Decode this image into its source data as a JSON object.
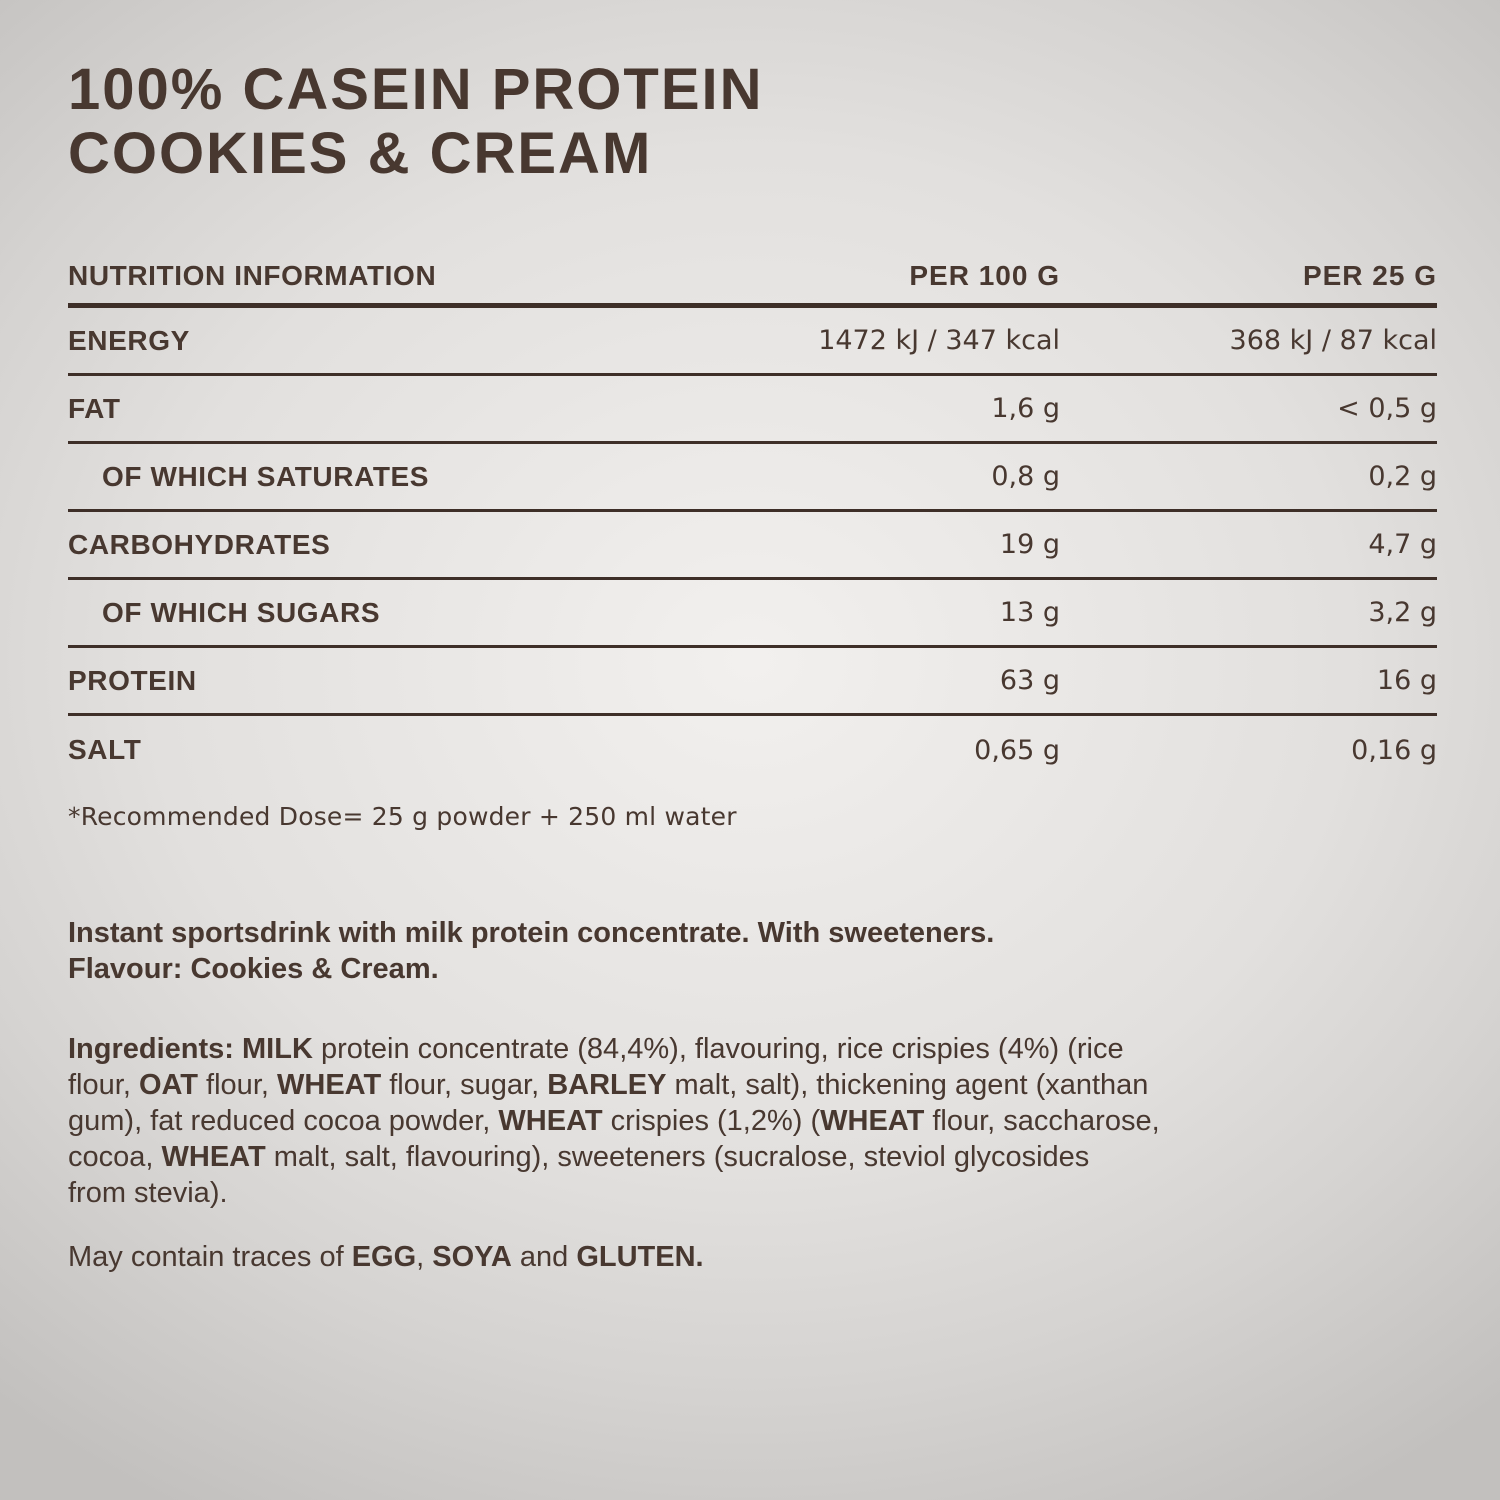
{
  "colors": {
    "text_brown": "#483830",
    "rule_brown": "#3e2f28",
    "background_center": "#f2f0ee",
    "background_edge": "#c2c0be"
  },
  "title": {
    "line1": "100% CASEIN PROTEIN",
    "line2": "COOKIES & CREAM"
  },
  "table": {
    "headers": [
      "NUTRITION INFORMATION",
      "PER 100 G",
      "PER 25 G"
    ],
    "rows": [
      {
        "label": "ENERGY",
        "per100": "1472 kJ / 347 kcal",
        "per25": "368 kJ / 87 kcal",
        "indent": false
      },
      {
        "label": "FAT",
        "per100": "1,6 g",
        "per25": "< 0,5 g",
        "indent": false
      },
      {
        "label": "OF WHICH SATURATES",
        "per100": "0,8 g",
        "per25": "0,2 g",
        "indent": true
      },
      {
        "label": "CARBOHYDRATES",
        "per100": "19 g",
        "per25": "4,7 g",
        "indent": false
      },
      {
        "label": "OF WHICH SUGARS",
        "per100": "13 g",
        "per25": "3,2 g",
        "indent": true
      },
      {
        "label": "PROTEIN",
        "per100": "63 g",
        "per25": "16 g",
        "indent": false
      },
      {
        "label": "SALT",
        "per100": "0,65 g",
        "per25": "0,16 g",
        "indent": false
      }
    ],
    "footnote": "*Recommended Dose= 25 g powder + 250 ml water"
  },
  "description": {
    "lines": [
      [
        {
          "t": "Instant sportsdrink with milk protein concentrate. With sweeteners.",
          "b": true
        }
      ],
      [
        {
          "t": "Flavour: Cookies & Cream.",
          "b": true
        }
      ]
    ]
  },
  "ingredients": {
    "lines": [
      [
        {
          "t": "Ingredients: ",
          "b": true
        },
        {
          "t": "MILK",
          "b": true
        },
        {
          "t": " protein concentrate (84,4%), flavouring, rice crispies (4%) (rice",
          "b": false
        }
      ],
      [
        {
          "t": "flour, ",
          "b": false
        },
        {
          "t": "OAT",
          "b": true
        },
        {
          "t": " flour, ",
          "b": false
        },
        {
          "t": "WHEAT",
          "b": true
        },
        {
          "t": " flour, sugar, ",
          "b": false
        },
        {
          "t": "BARLEY",
          "b": true
        },
        {
          "t": " malt, salt), thickening agent (xanthan",
          "b": false
        }
      ],
      [
        {
          "t": "gum), fat reduced cocoa powder, ",
          "b": false
        },
        {
          "t": "WHEAT",
          "b": true
        },
        {
          "t": " crispies (1,2%) (",
          "b": false
        },
        {
          "t": "WHEAT",
          "b": true
        },
        {
          "t": " flour, saccharose,",
          "b": false
        }
      ],
      [
        {
          "t": "cocoa, ",
          "b": false
        },
        {
          "t": "WHEAT",
          "b": true
        },
        {
          "t": " malt, salt, flavouring), sweeteners (sucralose, steviol glycosides",
          "b": false
        }
      ],
      [
        {
          "t": "from stevia).",
          "b": false
        }
      ]
    ]
  },
  "traces": {
    "lines": [
      [
        {
          "t": "May contain traces of ",
          "b": false
        },
        {
          "t": "EGG",
          "b": true
        },
        {
          "t": ", ",
          "b": false
        },
        {
          "t": "SOYA",
          "b": true
        },
        {
          "t": " and ",
          "b": false
        },
        {
          "t": "GLUTEN.",
          "b": true
        }
      ]
    ]
  }
}
